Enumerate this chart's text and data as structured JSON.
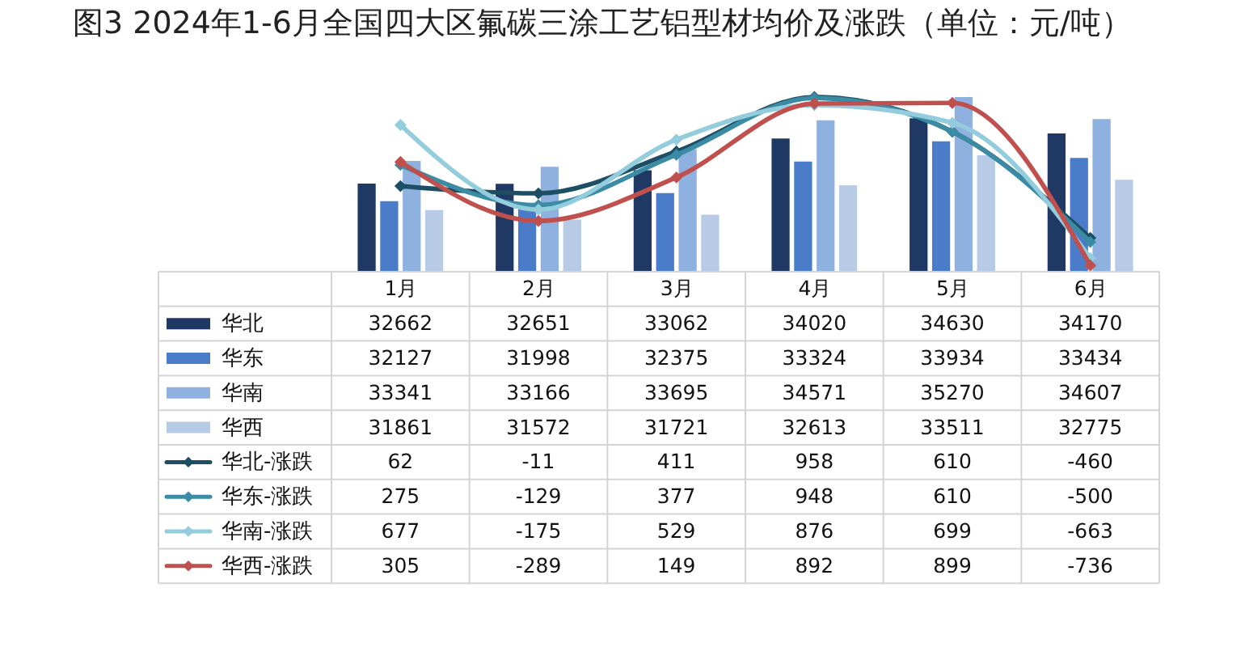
{
  "chart_data": {
    "type": "bar",
    "title": "图3 2024年1-6月全国四大区氟碳三涂工艺铝型材均价及涨跌（单位：元/吨）",
    "categories": [
      "1月",
      "2月",
      "3月",
      "4月",
      "5月",
      "6月"
    ],
    "series": [
      {
        "name": "华北",
        "color": "#1f3864",
        "values": [
          32662,
          32651,
          33062,
          34020,
          34630,
          34170
        ]
      },
      {
        "name": "华东",
        "color": "#4a7cc9",
        "values": [
          32127,
          31998,
          32375,
          33324,
          33934,
          33434
        ]
      },
      {
        "name": "华南",
        "color": "#8eb1e0",
        "values": [
          33341,
          33166,
          33695,
          34571,
          35270,
          34607
        ]
      },
      {
        "name": "华西",
        "color": "#b7cbe6",
        "values": [
          31861,
          31572,
          31721,
          32613,
          33511,
          32775
        ]
      },
      {
        "name": "华北-涨跌",
        "type": "line",
        "axis": "y2",
        "color": "#1d4e63",
        "values": [
          62,
          -11,
          411,
          958,
          610,
          -460
        ]
      },
      {
        "name": "华东-涨跌",
        "type": "line",
        "axis": "y2",
        "color": "#3b8ba5",
        "values": [
          275,
          -129,
          377,
          948,
          610,
          -500
        ]
      },
      {
        "name": "华南-涨跌",
        "type": "line",
        "axis": "y2",
        "color": "#93cddd",
        "values": [
          677,
          -175,
          529,
          876,
          699,
          -663
        ]
      },
      {
        "name": "华西-涨跌",
        "type": "line",
        "axis": "y2",
        "color": "#c0504d",
        "values": [
          305,
          -289,
          149,
          892,
          899,
          -736
        ]
      }
    ],
    "ylim": [
      30000,
      35270
    ],
    "y2lim": [
      -800,
      958
    ],
    "tick_labels": false,
    "data_labels": true,
    "legend": "bottom",
    "marker": "diamond",
    "line_style": "solid"
  }
}
